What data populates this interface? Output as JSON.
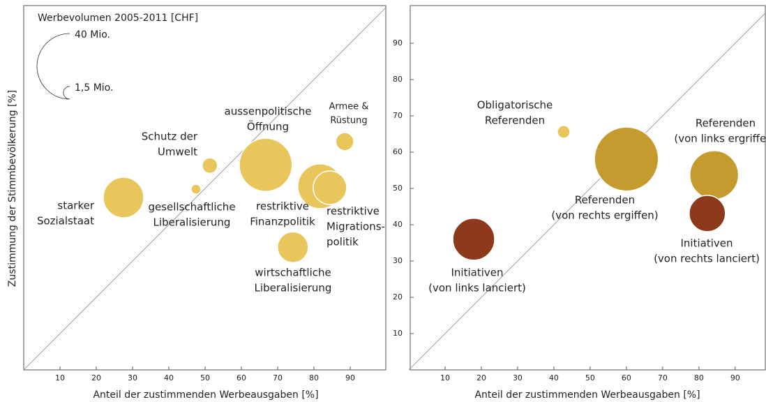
{
  "chart_data": [
    {
      "type": "bubble",
      "xlabel": "Anteil der zustimmenden Werbeausgaben [%]",
      "ylabel": "Zustimmung der Stimmbevölkerung [%]",
      "xlim": [
        0,
        100
      ],
      "ylim": [
        0,
        100
      ],
      "xticks": [
        10,
        20,
        30,
        40,
        50,
        60,
        70,
        80,
        90
      ],
      "size_legend": {
        "title": "Werbevolumen 2005-2011 [CHF]",
        "sizes": [
          {
            "value": 40,
            "label": "40 Mio."
          },
          {
            "value": 1.5,
            "label": "1,5 Mio."
          }
        ]
      },
      "labels": [
        [
          "starker",
          "Sozialstaat"
        ],
        [
          "gesellschaftliche",
          "Liberalisierung"
        ],
        [
          "Schutz der",
          "Umwelt"
        ],
        [
          "aussenpolitische",
          "Öffnung"
        ],
        [
          "restriktive",
          "Finanzpolitik"
        ],
        [
          "restriktive",
          "Migrations-",
          "politik"
        ],
        [
          "Armee &",
          "Rüstung"
        ],
        [
          "wirtschaftliche",
          "Liberalisierung"
        ]
      ],
      "x": [
        27.5,
        47.5,
        51.3,
        66.7,
        81.7,
        84.4,
        88.5,
        74.2
      ],
      "values": [
        47.5,
        49.8,
        56.3,
        56.5,
        50.6,
        50.2,
        62.9,
        33.8
      ],
      "sizes": [
        15.2,
        0.9,
        2.2,
        26,
        18.5,
        10.4,
        3,
        8.8
      ],
      "colors": [
        "#e9c65c",
        "#e9c65c",
        "#e9c65c",
        "#e9c65c",
        "#e9c65c",
        "#e9c65c",
        "#e9c65c",
        "#e9c65c"
      ]
    },
    {
      "type": "bubble",
      "xlabel": "Anteil der zustimmenden Werbeausgaben [%]",
      "xlim": [
        0,
        98.3
      ],
      "ylim": [
        0,
        100
      ],
      "xticks": [
        10,
        20,
        30,
        40,
        50,
        60,
        70,
        80,
        90
      ],
      "yticks": [
        10,
        20,
        30,
        40,
        50,
        60,
        70,
        80,
        90
      ],
      "labels": [
        [
          "Obligatorische",
          "Referenden"
        ],
        [
          "Referenden",
          "(von rechts ergiffen)"
        ],
        [
          "Referenden",
          "(von links ergriffen)"
        ],
        [
          "Initiativen",
          "(von rechts lanciert)"
        ],
        [
          "Initiativen",
          "(von links lanciert)"
        ]
      ],
      "x": [
        42.7,
        60,
        84.2,
        82.3,
        17.9
      ],
      "values": [
        65.6,
        58.1,
        53.7,
        43.1,
        36
      ],
      "sizes": [
        1.5,
        38,
        22,
        12.2,
        16.3
      ],
      "colors": [
        "#e9c65c",
        "#c59b2f",
        "#c59b2f",
        "#8c3a1b",
        "#8c3a1b"
      ]
    }
  ]
}
